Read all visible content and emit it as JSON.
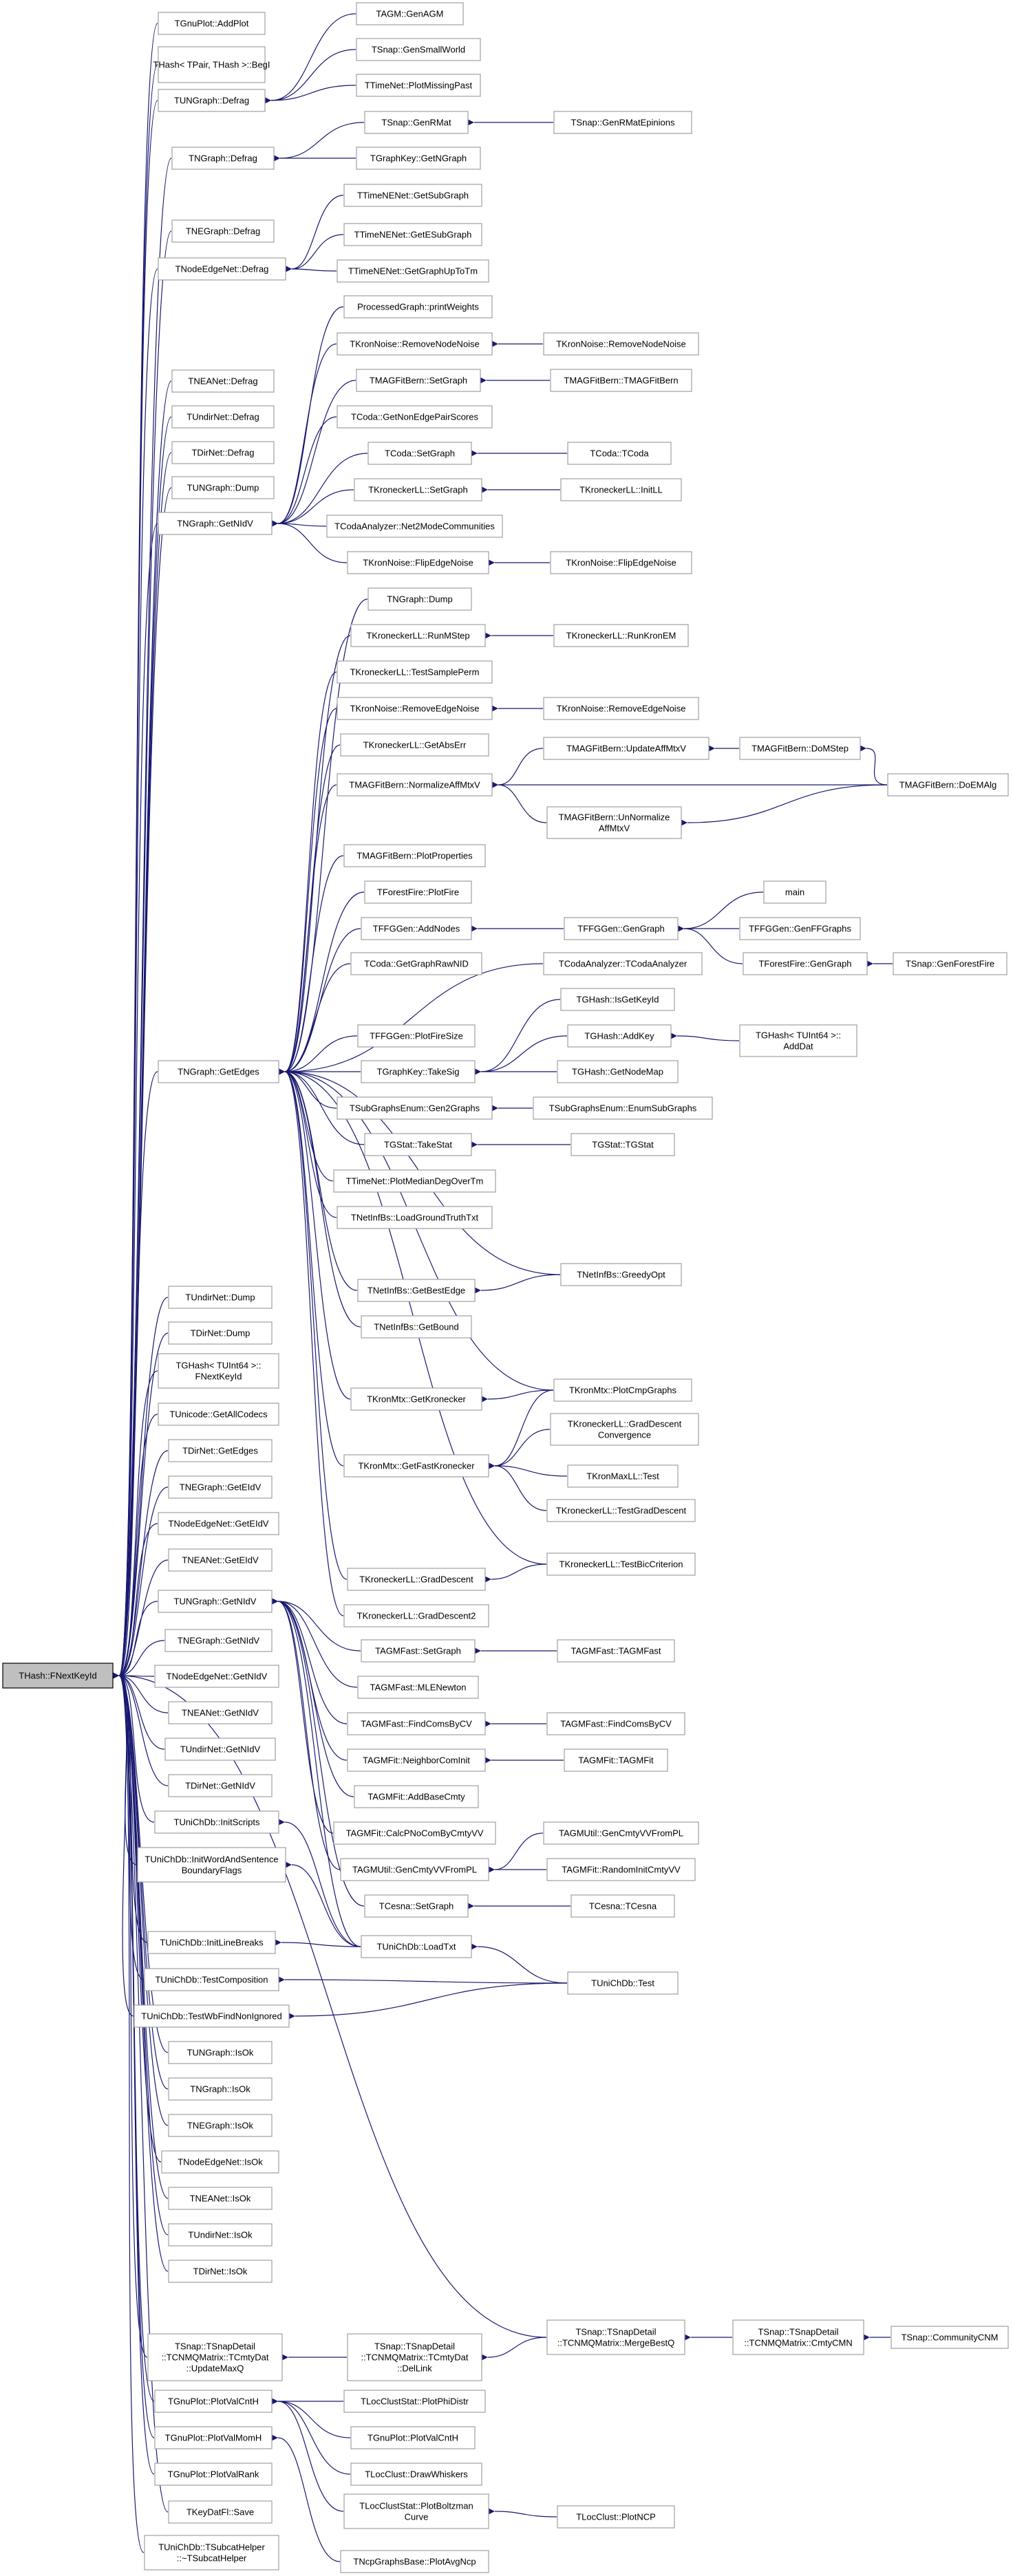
{
  "title": "",
  "colors": {
    "edge": "#191970",
    "node_border": "#a0a0a0",
    "root_fill": "#bfbfbf",
    "background": "#ffffff"
  },
  "root": "THash::FNextKeyId",
  "nodes": {
    "root": "THash::FNextKeyId",
    "gnuplot_addplot": "TGnuPlot::AddPlot",
    "thash_tpair_beg": "THash< TPair, THash >::BegI",
    "tungraph_defrag": "TUNGraph::Defrag",
    "tagm_genagm": "TAGM::GenAGM",
    "tsnap_gensmallworld": "TSnap::GenSmallWorld",
    "ttimenet_plotmissingpast": "TTimeNet::PlotMissingPast",
    "tngraph_defrag": "TNGraph::Defrag",
    "tsnap_genrmat": "TSnap::GenRMat",
    "tsnap_genrmatepinions": "TSnap::GenRMatEpinions",
    "tgraphkey_getngraph": "TGraphKey::GetNGraph",
    "tnegraph_defrag": "TNEGraph::Defrag",
    "tnodeedgenet_defrag": "TNodeEdgeNet::Defrag",
    "ttimenenet_getsubgraph": "TTimeNENet::GetSubGraph",
    "ttimenenet_getesubgraph": "TTimeNENet::GetESubGraph",
    "ttimenenet_getgraphuptotm": "TTimeNENet::GetGraphUpToTm",
    "tneanet_defrag": "TNEANet::Defrag",
    "tundirnet_defrag": "TUndirNet::Defrag",
    "tdirnet_defrag": "TDirNet::Defrag",
    "tungraph_dump": "TUNGraph::Dump",
    "tngraph_getnidv": "TNGraph::GetNIdV",
    "processedgraph_printweights": "ProcessedGraph::printWeights",
    "tkronnoise_removenodenoise": "TKronNoise::RemoveNodeNoise",
    "tkronnoise_removenodenoise2": "TKronNoise::RemoveNodeNoise",
    "tmagfitbern_setgraph": "TMAGFitBern::SetGraph",
    "tmagfitbern_tmagfitbern": "TMAGFitBern::TMAGFitBern",
    "tcoda_getnonedgepairscores": "TCoda::GetNonEdgePairScores",
    "tcoda_setgraph": "TCoda::SetGraph",
    "tcoda_tcoda": "TCoda::TCoda",
    "tkroneckerll_setgraph": "TKroneckerLL::SetGraph",
    "tkroneckerll_initll": "TKroneckerLL::InitLL",
    "tcodaanalyzer_net2modecommunities": "TCodaAnalyzer::Net2ModeCommunities",
    "tkronnoise_flipedgenoise": "TKronNoise::FlipEdgeNoise",
    "tkronnoise_flipedgenoise2": "TKronNoise::FlipEdgeNoise",
    "tngraph_dump": "TNGraph::Dump",
    "tkroneckerll_runmstep": "TKroneckerLL::RunMStep",
    "tkroneckerll_runkronem": "TKroneckerLL::RunKronEM",
    "tkroneckerll_testsampleperm": "TKroneckerLL::TestSamplePerm",
    "tkronnoise_removeedgenoise": "TKronNoise::RemoveEdgeNoise",
    "tkronnoise_removeedgenoise2": "TKronNoise::RemoveEdgeNoise",
    "tkroneckerll_getabserr": "TKroneckerLL::GetAbsErr",
    "tmagfitbern_updateaffmtxv": "TMAGFitBern::UpdateAffMtxV",
    "tmagfitbern_domstep": "TMAGFitBern::DoMStep",
    "tmagfitbern_normalizeaffmtxv": "TMAGFitBern::NormalizeAffMtxV",
    "tmagfitbern_doemalg": "TMAGFitBern::DoEMAlg",
    "tmagfitbern_unnormalize_1": "TMAGFitBern::UnNormalize",
    "tmagfitbern_unnormalize_2": "AffMtxV",
    "tmagfitbern_plotproperties": "TMAGFitBern::PlotProperties",
    "main": "main",
    "tforestfire_plotfire": "TForestFire::PlotFire",
    "tffggen_addnodes": "TFFGGen::AddNodes",
    "tffggen_gengraph": "TFFGGen::GenGraph",
    "tffggen_genffgraphs": "TFFGGen::GenFFGraphs",
    "tforestfire_gengraph": "TForestFire::GenGraph",
    "tsnap_genforestfire": "TSnap::GenForestFire",
    "tcodaanalyzer_tcodaanalyzer": "TCodaAnalyzer::TCodaAnalyzer",
    "tcoda_getgraphrawnid": "TCoda::GetGraphRawNID",
    "tghash_issetkeyid": "TGHash::IsGetKeyId",
    "tngraph_getedges": "TNGraph::GetEdges",
    "tffggen_plotfiresize": "TFFGGen::PlotFireSize",
    "tghash_addkey": "TGHash::AddKey",
    "tghash_tuint64_adddat_1": "TGHash< TUInt64 >::",
    "tghash_tuint64_adddat_2": "AddDat",
    "tgraphkey_takesig": "TGraphKey::TakeSig",
    "tghash_getnodemap": "TGHash::GetNodeMap",
    "tsubgraphsenum_gen2graphs": "TSubGraphsEnum::Gen2Graphs",
    "tsubgraphsenum_enumsubgraphs": "TSubGraphsEnum::EnumSubGraphs",
    "tgstat_takestat": "TGStat::TakeStat",
    "tgstat_tgstat": "TGStat::TGStat",
    "ttimenet_plotmediandegovertm": "TTimeNet::PlotMedianDegOverTm",
    "tnetinfbs_loadgroundtruthtxt": "TNetInfBs::LoadGroundTruthTxt",
    "tnetinfbs_greedyopt": "TNetInfBs::GreedyOpt",
    "tnetinfbs_getbestedge": "TNetInfBs::GetBestEdge",
    "tnetinfbs_getbound": "TNetInfBs::GetBound",
    "tkronmtx_plotcmpgraphs": "TKronMtx::PlotCmpGraphs",
    "tkronmtx_getkronecker": "TKronMtx::GetKronecker",
    "tkroneckerll_graddescent_conv_1": "TKroneckerLL::GradDescent",
    "tkroneckerll_graddescent_conv_2": "Convergence",
    "tkronmtx_getfastkronecker": "TKronMtx::GetFastKronecker",
    "tkronmaxll_test": "TKronMaxLL::Test",
    "tkroneckerll_testgraddescent": "TKroneckerLL::TestGradDescent",
    "tkroneckerll_graddescent": "TKroneckerLL::GradDescent",
    "tkroneckerll_testbiccriterion": "TKroneckerLL::TestBicCriterion",
    "tkroneckerll_graddescent2": "TKroneckerLL::GradDescent2",
    "tundirnet_dump": "TUndirNet::Dump",
    "tdirnet_dump": "TDirNet::Dump",
    "tghash_tuint64_fnextkeyid_1": "TGHash< TUInt64 >::",
    "tghash_tuint64_fnextkeyid_2": "FNextKeyId",
    "tunicode_getallcodecs": "TUnicode::GetAllCodecs",
    "tdirnet_getedges": "TDirNet::GetEdges",
    "tnegraph_geteidv": "TNEGraph::GetEIdV",
    "tnodeedgenet_geteidv": "TNodeEdgeNet::GetEIdV",
    "tneanet_geteidv": "TNEANet::GetEIdV",
    "tungraph_getnidv": "TUNGraph::GetNIdV",
    "tagmfast_setgraph": "TAGMFast::SetGraph",
    "tagmfast_tagmfast": "TAGMFast::TAGMFast",
    "tnegraph_getnidv": "TNEGraph::GetNIdV",
    "tagmfast_mlenewton": "TAGMFast::MLENewton",
    "tnodeedgenet_getnidv": "TNodeEdgeNet::GetNIdV",
    "tagmfast_findcomsbycv": "TAGMFast::FindComsByCV",
    "tagmfast_findcomsbycv2": "TAGMFast::FindComsByCV",
    "tneanet_getnidv": "TNEANet::GetNIdV",
    "tagmfit_neighborcominit": "TAGMFit::NeighborComInit",
    "tagmfit_tagmfit": "TAGMFit::TAGMFit",
    "tundirnet_getnidv": "TUndirNet::GetNIdV",
    "tagmfit_addbasecmty": "TAGMFit::AddBaseCmty",
    "tdirnet_getnidv": "TDirNet::GetNIdV",
    "tagmfit_calcpnocombycmtyvv": "TAGMFit::CalcPNoComByCmtyVV",
    "tagmutil_gencmtyvvfrompl": "TAGMUtil::GenCmtyVVFromPL",
    "tagmutil_gencmtyvvfrompl2": "TAGMUtil::GenCmtyVVFromPL",
    "tunichdb_initscripts": "TUniChDb::InitScripts",
    "tagmfit_randominitcmtyvv": "TAGMFit::RandomInitCmtyVV",
    "tunichdb_initwordandsentence_1": "TUniChDb::InitWordAndSentence",
    "tunichdb_initwordandsentence_2": "BoundaryFlags",
    "tcesna_setgraph": "TCesna::SetGraph",
    "tcesna_tcesna": "TCesna::TCesna",
    "tunichdb_initlinebreaks": "TUniChDb::InitLineBreaks",
    "tunichdb_loadtxt": "TUniChDb::LoadTxt",
    "tunichdb_testcomposition": "TUniChDb::TestComposition",
    "tunichdb_test": "TUniChDb::Test",
    "tunichdb_testwbfindnonignored": "TUniChDb::TestWbFindNonIgnored",
    "tungraph_isok": "TUNGraph::IsOk",
    "tngraph_isok": "TNGraph::IsOk",
    "tnegraph_isok": "TNEGraph::IsOk",
    "tnodeedgenet_isok": "TNodeEdgeNet::IsOk",
    "tneanet_isok": "TNEANet::IsOk",
    "tundirnet_isok": "TUndirNet::IsOk",
    "tdirnet_isok": "TDirNet::IsOk",
    "tsnap_mergebestq_1": "TSnap::TSnapDetail",
    "tsnap_mergebestq_2": "::TCNMQMatrix::MergeBestQ",
    "tsnap_cmtycmn_1": "TSnap::TSnapDetail",
    "tsnap_cmtycmn_2": "::TCNMQMatrix::CmtyCMN",
    "tsnap_communitycnm": "TSnap::CommunityCNM",
    "tsnap_updatemaxq_1": "TSnap::TSnapDetail",
    "tsnap_updatemaxq_2": "::TCNMQMatrix::TCmtyDat",
    "tsnap_updatemaxq_3": "::UpdateMaxQ",
    "tsnap_dellink_1": "TSnap::TSnapDetail",
    "tsnap_dellink_2": "::TCNMQMatrix::TCmtyDat",
    "tsnap_dellink_3": "::DelLink",
    "tgnuplot_plotvalcntH": "TGnuPlot::PlotValCntH",
    "tlocclust_plotphidistr": "TLocClustStat::PlotPhiDistr",
    "tgnuplot_plotvalcntH2": "TGnuPlot::PlotValCntH",
    "tgnuplot_plotvalmomh": "TGnuPlot::PlotValMomH",
    "tlocclust_drawwhiskers": "TLocClust::DrawWhiskers",
    "tgnuplot_plotvalrank": "TGnuPlot::PlotValRank",
    "tlocclust_plotboltzman_1": "TLocClustStat::PlotBoltzman",
    "tlocclust_plotboltzman_2": "Curve",
    "tlocclust_plotncp": "TLocClust::PlotNCP",
    "tkeydatfl_save": "TKeyDatFl::Save",
    "tunichdb_tsubcathelper_1": "TUniChDb::TSubcatHelper",
    "tunichdb_tsubcathelper_2": "::~TSubcatHelper",
    "tncpgraphsbase_plotavgncp": "TNcpGraphsBase::PlotAvgNcp"
  }
}
